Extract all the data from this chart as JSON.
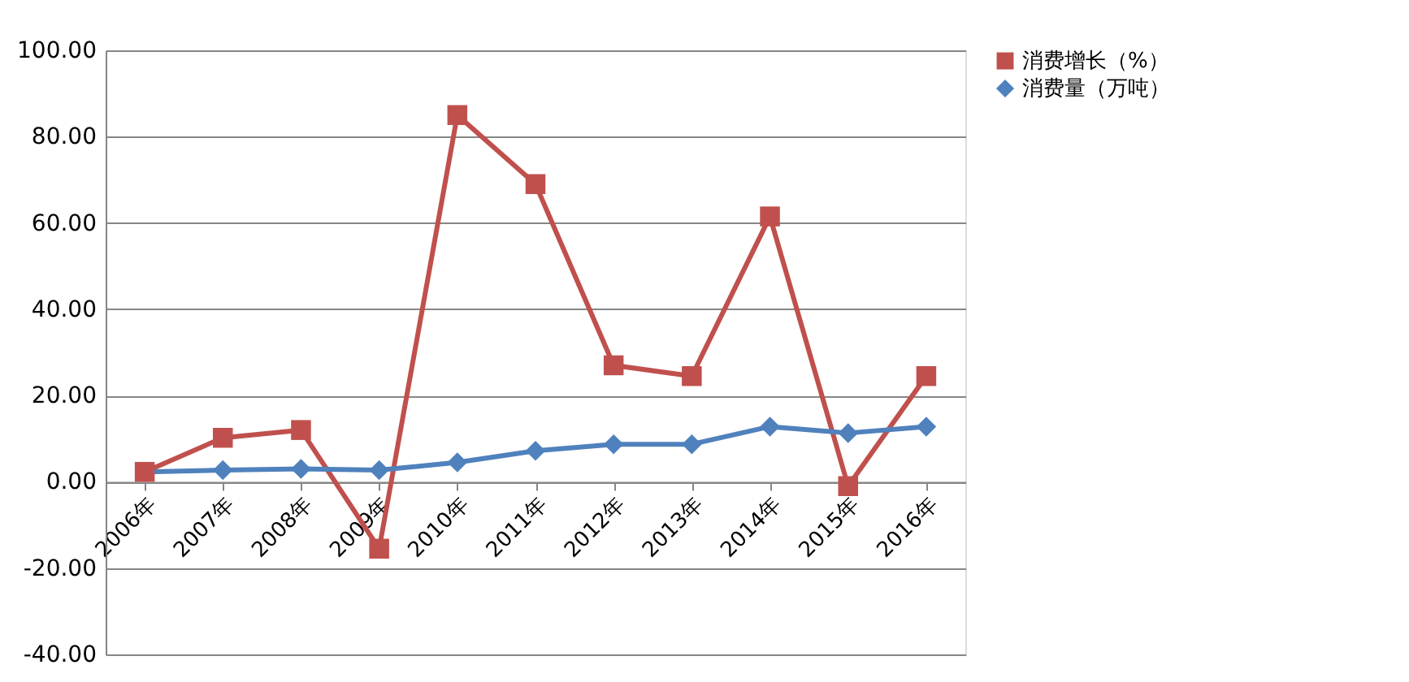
{
  "chart_data": {
    "type": "line",
    "categories": [
      "2006年",
      "2007年",
      "2008年",
      "2009年",
      "2010年",
      "2011年",
      "2012年",
      "2013年",
      "2014年",
      "2015年",
      "2016年"
    ],
    "series": [
      {
        "name": "消费增长（%）",
        "color": "#c0504d",
        "marker": "square",
        "values": [
          2.3,
          10.2,
          12.0,
          -15.5,
          85.0,
          69.0,
          27.0,
          24.5,
          61.5,
          -1.0,
          24.5
        ]
      },
      {
        "name": "消费量（万吨）",
        "color": "#4f81bd",
        "marker": "diamond",
        "values": [
          2.3,
          2.7,
          3.0,
          2.7,
          4.5,
          7.2,
          8.7,
          8.7,
          12.8,
          11.3,
          12.8
        ]
      }
    ],
    "ylim": [
      -40,
      100
    ],
    "yticks": [
      {
        "value": -40,
        "label": "-40.00"
      },
      {
        "value": -20,
        "label": "-20.00"
      },
      {
        "value": 0,
        "label": "0.00"
      },
      {
        "value": 20,
        "label": "20.00"
      },
      {
        "value": 40,
        "label": "40.00"
      },
      {
        "value": 60,
        "label": "60.00"
      },
      {
        "value": 80,
        "label": "80.00"
      },
      {
        "value": 100,
        "label": "100.00"
      }
    ],
    "grid": "y",
    "legend": "right",
    "line_style": "solid"
  }
}
